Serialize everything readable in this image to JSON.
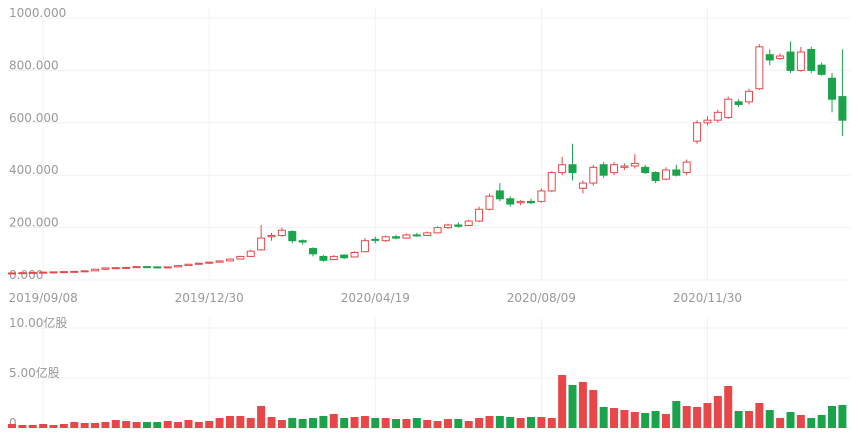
{
  "chart_data": [
    {
      "type": "candlestick",
      "categories": [
        null,
        null,
        null,
        "2019/09/08",
        null,
        null,
        null,
        null,
        null,
        null,
        null,
        null,
        null,
        null,
        null,
        null,
        null,
        null,
        null,
        "2019/12/30",
        null,
        null,
        null,
        null,
        null,
        null,
        null,
        null,
        null,
        null,
        null,
        null,
        null,
        null,
        null,
        "2020/04/19",
        null,
        null,
        null,
        null,
        null,
        null,
        null,
        null,
        null,
        null,
        null,
        null,
        null,
        null,
        null,
        "2020/08/09",
        null,
        null,
        null,
        null,
        null,
        null,
        null,
        null,
        null,
        null,
        null,
        null,
        null,
        null,
        null,
        "2020/11/30",
        null,
        null,
        null,
        null,
        null,
        null,
        null,
        null,
        null,
        null,
        null,
        null,
        null
      ],
      "ohlc": [
        [
          26,
          28,
          25,
          27
        ],
        [
          27,
          29,
          26,
          28
        ],
        [
          28,
          30,
          27,
          29
        ],
        [
          29,
          31,
          28,
          30
        ],
        [
          30,
          32,
          29,
          31
        ],
        [
          31,
          33,
          30,
          32
        ],
        [
          32,
          34,
          31,
          33
        ],
        [
          33,
          36,
          32,
          35
        ],
        [
          35,
          42,
          34,
          41
        ],
        [
          41,
          47,
          40,
          46
        ],
        [
          46,
          49,
          44,
          47
        ],
        [
          47,
          50,
          45,
          48
        ],
        [
          48,
          52,
          47,
          51
        ],
        [
          51,
          54,
          49,
          50
        ],
        [
          50,
          52,
          47,
          49
        ],
        [
          49,
          51,
          47,
          50
        ],
        [
          50,
          56,
          49,
          55
        ],
        [
          55,
          62,
          54,
          60
        ],
        [
          60,
          66,
          58,
          64
        ],
        [
          64,
          70,
          62,
          68
        ],
        [
          68,
          75,
          66,
          73
        ],
        [
          73,
          82,
          71,
          80
        ],
        [
          80,
          92,
          78,
          90
        ],
        [
          90,
          115,
          88,
          110
        ],
        [
          115,
          210,
          112,
          160
        ],
        [
          165,
          180,
          150,
          170
        ],
        [
          170,
          200,
          165,
          190
        ],
        [
          185,
          190,
          140,
          150
        ],
        [
          150,
          155,
          135,
          145
        ],
        [
          120,
          125,
          90,
          100
        ],
        [
          90,
          95,
          70,
          75
        ],
        [
          78,
          95,
          75,
          90
        ],
        [
          95,
          98,
          80,
          85
        ],
        [
          88,
          110,
          86,
          105
        ],
        [
          108,
          160,
          105,
          150
        ],
        [
          155,
          165,
          140,
          152
        ],
        [
          150,
          170,
          145,
          165
        ],
        [
          165,
          172,
          155,
          160
        ],
        [
          160,
          178,
          158,
          172
        ],
        [
          172,
          180,
          165,
          170
        ],
        [
          170,
          185,
          168,
          180
        ],
        [
          180,
          205,
          178,
          200
        ],
        [
          200,
          215,
          195,
          210
        ],
        [
          210,
          220,
          200,
          205
        ],
        [
          208,
          230,
          205,
          225
        ],
        [
          225,
          280,
          220,
          270
        ],
        [
          270,
          330,
          265,
          320
        ],
        [
          340,
          370,
          300,
          310
        ],
        [
          310,
          320,
          280,
          290
        ],
        [
          295,
          305,
          285,
          300
        ],
        [
          300,
          310,
          290,
          295
        ],
        [
          300,
          350,
          295,
          340
        ],
        [
          340,
          415,
          335,
          410
        ],
        [
          410,
          470,
          400,
          440
        ],
        [
          440,
          520,
          380,
          410
        ],
        [
          350,
          380,
          330,
          370
        ],
        [
          370,
          440,
          360,
          430
        ],
        [
          440,
          450,
          390,
          400
        ],
        [
          410,
          450,
          400,
          440
        ],
        [
          430,
          445,
          420,
          435
        ],
        [
          435,
          480,
          425,
          445
        ],
        [
          430,
          440,
          405,
          410
        ],
        [
          410,
          415,
          370,
          380
        ],
        [
          385,
          430,
          380,
          420
        ],
        [
          420,
          440,
          395,
          400
        ],
        [
          410,
          460,
          400,
          450
        ],
        [
          530,
          610,
          520,
          600
        ],
        [
          600,
          625,
          590,
          610
        ],
        [
          610,
          650,
          600,
          640
        ],
        [
          620,
          700,
          615,
          690
        ],
        [
          680,
          690,
          660,
          670
        ],
        [
          680,
          730,
          670,
          720
        ],
        [
          730,
          900,
          725,
          890
        ],
        [
          860,
          880,
          820,
          840
        ],
        [
          845,
          865,
          840,
          855
        ],
        [
          870,
          910,
          790,
          800
        ],
        [
          800,
          890,
          795,
          870
        ],
        [
          880,
          890,
          790,
          800
        ],
        [
          820,
          830,
          780,
          785
        ],
        [
          770,
          790,
          640,
          690
        ],
        [
          700,
          880,
          550,
          610
        ]
      ],
      "ylim": [
        0,
        1000
      ],
      "yticks": [
        {
          "value": 0,
          "label": "0.000"
        },
        {
          "value": 200,
          "label": "200.000"
        },
        {
          "value": 400,
          "label": "400.000"
        },
        {
          "value": 600,
          "label": "600.000"
        },
        {
          "value": 800,
          "label": "800.000"
        },
        {
          "value": 1000,
          "label": "1000.000"
        }
      ],
      "up_color": "#e8474a",
      "down_color": "#1aa34a",
      "grid": true
    },
    {
      "type": "bar",
      "values": [
        0.4,
        0.3,
        0.3,
        0.4,
        0.3,
        0.4,
        0.6,
        0.5,
        0.5,
        0.6,
        0.8,
        0.7,
        0.6,
        0.6,
        0.6,
        0.7,
        0.6,
        0.8,
        0.6,
        0.7,
        1.0,
        1.2,
        1.2,
        1.0,
        2.2,
        1.1,
        0.8,
        1.0,
        0.9,
        1.0,
        1.2,
        1.4,
        1.0,
        1.1,
        1.2,
        1.0,
        1.0,
        0.9,
        0.9,
        1.0,
        0.8,
        0.7,
        0.9,
        0.9,
        0.7,
        1.0,
        1.2,
        1.2,
        1.1,
        1.0,
        1.1,
        1.1,
        1.0,
        5.3,
        4.3,
        4.6,
        3.8,
        2.1,
        2.0,
        1.8,
        1.6,
        1.5,
        1.7,
        1.4,
        2.7,
        2.2,
        2.1,
        2.5,
        3.2,
        4.2,
        1.7,
        1.7,
        2.5,
        1.8,
        1.0,
        1.6,
        1.3,
        1.0,
        1.3,
        2.2,
        2.3
      ],
      "ylim": [
        0,
        10
      ],
      "yticks": [
        0,
        {
          "value": 5,
          "label": "5.00亿股"
        },
        {
          "value": 10,
          "label": "10.00亿股"
        }
      ],
      "grid": true
    }
  ]
}
